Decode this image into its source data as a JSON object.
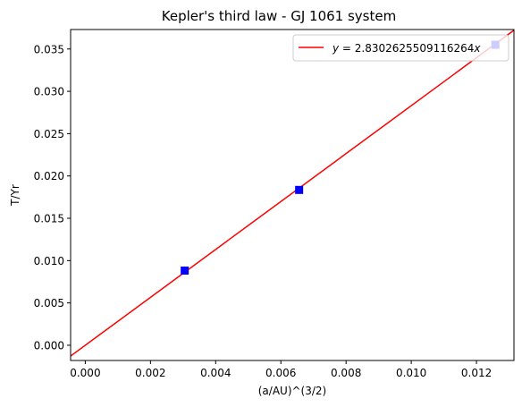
{
  "chart_data": {
    "type": "scatter",
    "title": "Kepler's third law - GJ 1061 system",
    "xlabel": "(a/AU)^(3/2)",
    "ylabel": "T/Yr",
    "xlim": [
      -0.00045,
      0.01315
    ],
    "ylim": [
      -0.0018,
      0.0373
    ],
    "x_ticks": [
      0.0,
      0.002,
      0.004,
      0.006,
      0.008,
      0.01,
      0.012
    ],
    "x_tick_labels": [
      "0.000",
      "0.002",
      "0.004",
      "0.006",
      "0.008",
      "0.010",
      "0.012"
    ],
    "y_ticks": [
      0.0,
      0.005,
      0.01,
      0.015,
      0.02,
      0.025,
      0.03,
      0.035
    ],
    "y_tick_labels": [
      "0.000",
      "0.005",
      "0.010",
      "0.015",
      "0.020",
      "0.025",
      "0.030",
      "0.035"
    ],
    "grid": false,
    "legend_position": "top-right",
    "series": [
      {
        "kind": "scatter",
        "marker": "square",
        "color": "#0000ff",
        "x": [
          0.00305,
          0.00656,
          0.01258
        ],
        "y": [
          0.00882,
          0.01835,
          0.0355
        ]
      },
      {
        "kind": "line",
        "name": "$y = 2.8302625509116264x$",
        "color": "#ff0000",
        "slope": 2.8302625509116264
      }
    ],
    "legend_entries": [
      {
        "label_prefix": "y",
        "label_suffix": " = 2.8302625509116264",
        "label_var": "x",
        "color": "#ff0000"
      }
    ]
  }
}
